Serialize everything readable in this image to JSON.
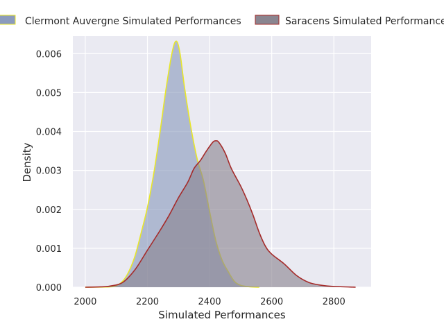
{
  "chart_data": {
    "type": "area",
    "title": "",
    "xlabel": "Simulated Performances",
    "ylabel": "Density",
    "xlim": [
      1960,
      2920
    ],
    "ylim": [
      0,
      0.00645
    ],
    "xticks": [
      2000,
      2200,
      2400,
      2600,
      2800
    ],
    "xtick_labels": [
      "2000",
      "2200",
      "2400",
      "2600",
      "2800"
    ],
    "yticks": [
      0,
      0.001,
      0.002,
      0.003,
      0.004,
      0.005,
      0.006
    ],
    "ytick_labels": [
      "0.000",
      "0.001",
      "0.002",
      "0.003",
      "0.004",
      "0.005",
      "0.006"
    ],
    "grid": true,
    "legend_position": "top",
    "background_color": "#eaeaf2",
    "series": [
      {
        "name": "Clermont Auvergne Simulated Performances",
        "fill_color": "#8b9bbd",
        "line_color": "#e8e62a",
        "points": [
          [
            2000,
            0
          ],
          [
            2080,
            1e-05
          ],
          [
            2100,
            4e-05
          ],
          [
            2120,
            0.00015
          ],
          [
            2140,
            0.0004
          ],
          [
            2160,
            0.0008
          ],
          [
            2180,
            0.0014
          ],
          [
            2200,
            0.00205
          ],
          [
            2220,
            0.0029
          ],
          [
            2240,
            0.00395
          ],
          [
            2260,
            0.0051
          ],
          [
            2280,
            0.00605
          ],
          [
            2293,
            0.00632
          ],
          [
            2305,
            0.006
          ],
          [
            2320,
            0.0051
          ],
          [
            2340,
            0.0041
          ],
          [
            2360,
            0.0033
          ],
          [
            2380,
            0.00275
          ],
          [
            2400,
            0.00195
          ],
          [
            2420,
            0.0012
          ],
          [
            2440,
            0.0007
          ],
          [
            2460,
            0.0004
          ],
          [
            2480,
            0.00015
          ],
          [
            2500,
            5e-05
          ],
          [
            2530,
            1e-05
          ],
          [
            2560,
            0
          ]
        ]
      },
      {
        "name": "Saracens Simulated Performances",
        "fill_color": "#8a8590",
        "line_color": "#a52b2a",
        "points": [
          [
            2000,
            0
          ],
          [
            2050,
            1e-05
          ],
          [
            2080,
            3e-05
          ],
          [
            2120,
            0.00012
          ],
          [
            2160,
            0.00045
          ],
          [
            2200,
            0.00095
          ],
          [
            2240,
            0.00145
          ],
          [
            2270,
            0.00185
          ],
          [
            2300,
            0.0023
          ],
          [
            2330,
            0.0027
          ],
          [
            2350,
            0.00305
          ],
          [
            2370,
            0.00325
          ],
          [
            2390,
            0.0035
          ],
          [
            2410,
            0.00372
          ],
          [
            2420,
            0.00376
          ],
          [
            2430,
            0.00372
          ],
          [
            2450,
            0.00345
          ],
          [
            2470,
            0.00305
          ],
          [
            2500,
            0.0026
          ],
          [
            2520,
            0.00225
          ],
          [
            2540,
            0.00185
          ],
          [
            2560,
            0.0014
          ],
          [
            2580,
            0.00105
          ],
          [
            2600,
            0.00085
          ],
          [
            2640,
            0.0006
          ],
          [
            2680,
            0.0003
          ],
          [
            2720,
            0.00012
          ],
          [
            2760,
            5e-05
          ],
          [
            2800,
            2e-05
          ],
          [
            2870,
            0
          ]
        ]
      }
    ]
  }
}
